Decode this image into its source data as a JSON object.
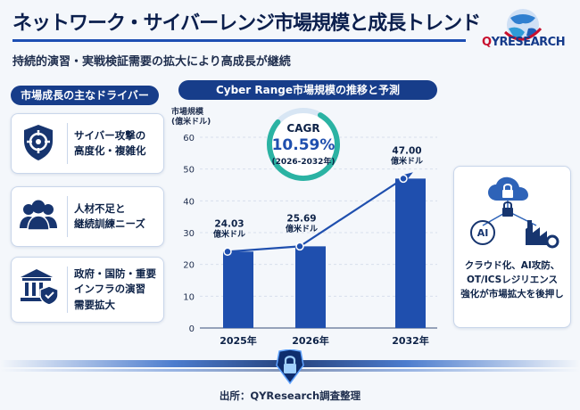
{
  "header": {
    "title": "ネットワーク・サイバーレンジ市場規模と成長トレンド",
    "subtitle": "持続的演習・実戦検証需要の拡大により高成長が継続",
    "logo_text_q": "Q",
    "logo_text_rest": "YRESEARCH"
  },
  "drivers": {
    "heading": "市場成長の主なドライバー",
    "items": [
      {
        "icon": "shield-target-icon",
        "line1": "サイバー攻撃の",
        "line2": "高度化・複雑化",
        "line3": ""
      },
      {
        "icon": "people-icon",
        "line1": "人材不足と",
        "line2": "継続訓練ニーズ",
        "line3": ""
      },
      {
        "icon": "government-shield-icon",
        "line1": "政府・国防・重要",
        "line2": "インフラの演習",
        "line3": "需要拡大"
      }
    ]
  },
  "trend_card": {
    "icon": "cloud-ai-industrial-icon",
    "line1": "クラウド化、AI攻防、",
    "line2": "OT/ICSレジリエンス",
    "line3": "強化が市場拡大を後押し"
  },
  "chart_heading": "Cyber Range市場規模の推移と予測",
  "chart_data": {
    "type": "bar",
    "title": "Cyber Range市場規模の推移と予測",
    "ylabel_line1": "市場規模",
    "ylabel_line2": "(億米ドル)",
    "categories": [
      "2025年",
      "2026年",
      "2032年"
    ],
    "values": [
      24.03,
      25.69,
      47.0
    ],
    "value_labels": [
      "24.03",
      "25.69",
      "47.00"
    ],
    "unit_label": "億米ドル",
    "yticks": [
      0,
      10,
      20,
      30,
      40,
      50,
      60
    ],
    "ylim": [
      0,
      60
    ],
    "grid": true,
    "overlay": "line-with-markers-and-arrow",
    "cagr": {
      "label": "CAGR",
      "value": "10.59%",
      "period": "(2026-2032年)"
    },
    "colors": {
      "bar": "#1f4fae",
      "line": "#1f4fae",
      "accent": "#2bb3a3"
    }
  },
  "footer": {
    "source": "出所：QYResearch調査整理"
  }
}
